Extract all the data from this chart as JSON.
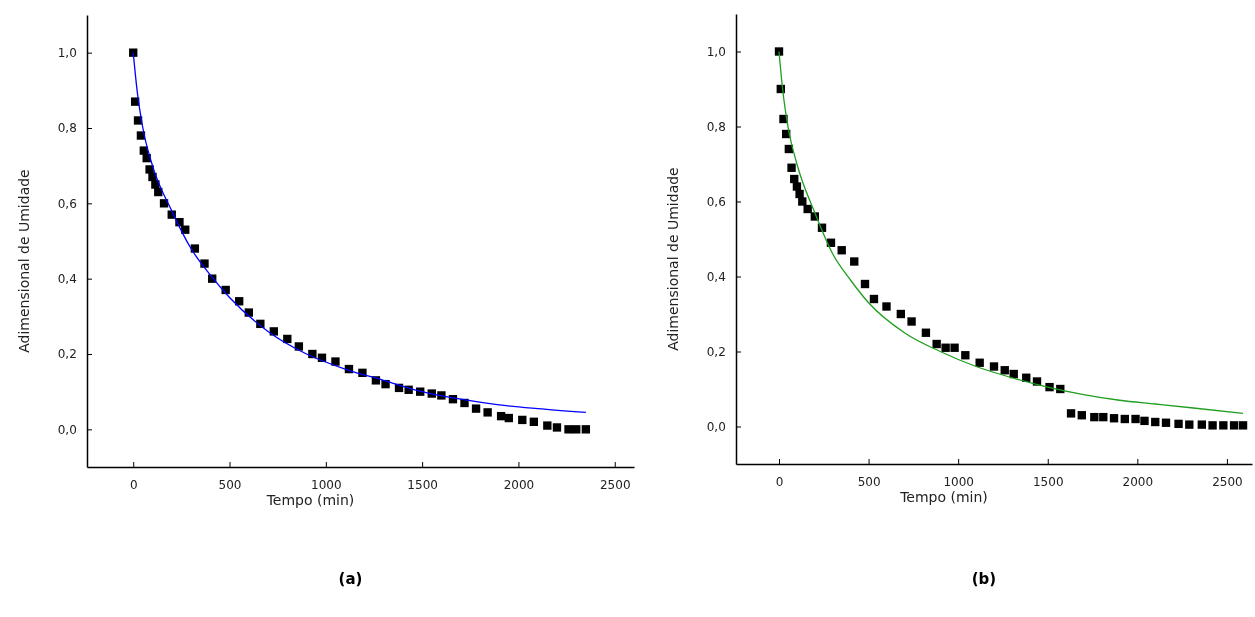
{
  "chart_data": [
    {
      "type": "scatter",
      "title": "(a)",
      "xlabel": "Tempo (min)",
      "ylabel": "Adimensional de Umidade",
      "xlim": [
        -240,
        2600
      ],
      "ylim": [
        -0.1,
        1.1
      ],
      "xticks": [
        0,
        500,
        1000,
        1500,
        2000,
        2500
      ],
      "yticks": [
        {
          "value": 0,
          "label": "0,0"
        },
        {
          "value": 0.2,
          "label": "0,2"
        },
        {
          "value": 0.4,
          "label": "0,4"
        },
        {
          "value": 0.6,
          "label": "0,6"
        },
        {
          "value": 0.8,
          "label": "0,8"
        },
        {
          "value": 1,
          "label": "1,0"
        }
      ],
      "grid": false,
      "series": [
        {
          "marker": "square",
          "color": "#000000",
          "x": [
            0,
            10,
            25,
            40,
            55,
            70,
            85,
            100,
            115,
            130,
            160,
            200,
            240,
            270,
            320,
            370,
            410,
            480,
            550,
            600,
            660,
            730,
            800,
            860,
            930,
            980,
            1050,
            1120,
            1190,
            1260,
            1310,
            1380,
            1430,
            1490,
            1550,
            1600,
            1660,
            1720,
            1780,
            1840,
            1910,
            1950,
            2020,
            2080,
            2150,
            2200,
            2260,
            2300,
            2350
          ],
          "values": [
            1.0,
            0.87,
            0.82,
            0.78,
            0.74,
            0.72,
            0.69,
            0.67,
            0.65,
            0.63,
            0.6,
            0.57,
            0.55,
            0.53,
            0.48,
            0.44,
            0.4,
            0.37,
            0.34,
            0.31,
            0.28,
            0.26,
            0.24,
            0.22,
            0.2,
            0.19,
            0.18,
            0.16,
            0.15,
            0.13,
            0.12,
            0.11,
            0.105,
            0.1,
            0.095,
            0.09,
            0.08,
            0.07,
            0.055,
            0.045,
            0.035,
            0.03,
            0.025,
            0.02,
            0.01,
            0.005,
            0,
            0,
            0
          ]
        },
        {
          "type": "line",
          "marker": "none",
          "color": "#0000ff",
          "x": [
            0,
            20,
            50,
            100,
            200,
            300,
            400,
            500,
            700,
            900,
            1100,
            1300,
            1500,
            1700,
            1900,
            2100,
            2350
          ],
          "values": [
            1,
            0.9,
            0.8,
            0.7,
            0.58,
            0.48,
            0.41,
            0.35,
            0.26,
            0.2,
            0.16,
            0.13,
            0.1,
            0.08,
            0.065,
            0.055,
            0.045
          ]
        }
      ]
    },
    {
      "type": "scatter",
      "title": "(b)",
      "xlabel": "Tempo (min)",
      "ylabel": "Adimensional de Umidade",
      "xlim": [
        -240,
        2640
      ],
      "ylim": [
        -0.1,
        1.1
      ],
      "xticks": [
        0,
        500,
        1000,
        1500,
        2000,
        2500
      ],
      "yticks": [
        {
          "value": 0,
          "label": "0,0"
        },
        {
          "value": 0.2,
          "label": "0,2"
        },
        {
          "value": 0.4,
          "label": "0,4"
        },
        {
          "value": 0.6,
          "label": "0,6"
        },
        {
          "value": 0.8,
          "label": "0,8"
        },
        {
          "value": 1,
          "label": "1,0"
        }
      ],
      "grid": false,
      "series": [
        {
          "marker": "square",
          "color": "#000000",
          "x": [
            0,
            10,
            25,
            40,
            55,
            70,
            85,
            100,
            115,
            130,
            160,
            200,
            240,
            290,
            350,
            420,
            480,
            530,
            600,
            680,
            740,
            820,
            880,
            930,
            980,
            1040,
            1120,
            1200,
            1260,
            1310,
            1380,
            1440,
            1510,
            1570,
            1630,
            1690,
            1760,
            1810,
            1870,
            1930,
            1990,
            2040,
            2100,
            2160,
            2230,
            2290,
            2360,
            2420,
            2480,
            2540,
            2590
          ],
          "values": [
            1.0,
            0.9,
            0.82,
            0.78,
            0.74,
            0.69,
            0.66,
            0.64,
            0.62,
            0.6,
            0.58,
            0.56,
            0.53,
            0.49,
            0.47,
            0.44,
            0.38,
            0.34,
            0.32,
            0.3,
            0.28,
            0.25,
            0.22,
            0.21,
            0.21,
            0.19,
            0.17,
            0.16,
            0.15,
            0.14,
            0.13,
            0.12,
            0.105,
            0.1,
            0.035,
            0.03,
            0.025,
            0.025,
            0.022,
            0.02,
            0.02,
            0.015,
            0.012,
            0.01,
            0.007,
            0.005,
            0.005,
            0.003,
            0.003,
            0.003,
            0.003
          ]
        },
        {
          "type": "line",
          "marker": "none",
          "color": "#1f9e1f",
          "x": [
            0,
            20,
            50,
            100,
            200,
            300,
            400,
            500,
            700,
            900,
            1100,
            1300,
            1500,
            1700,
            1900,
            2100,
            2300,
            2590
          ],
          "values": [
            1,
            0.9,
            0.8,
            0.7,
            0.57,
            0.46,
            0.39,
            0.33,
            0.25,
            0.2,
            0.16,
            0.13,
            0.105,
            0.085,
            0.07,
            0.06,
            0.05,
            0.035
          ]
        }
      ]
    }
  ]
}
